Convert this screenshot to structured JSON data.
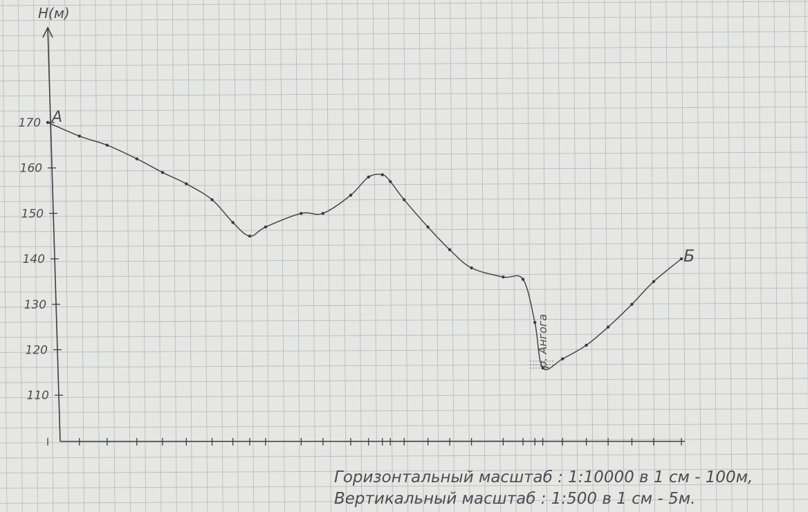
{
  "chart_data": {
    "type": "line",
    "y_axis_label": "H(м)",
    "y_ticks": [
      "110",
      "120",
      "130",
      "140",
      "150",
      "160",
      "170"
    ],
    "y_tick_values": [
      110,
      120,
      130,
      140,
      150,
      160,
      170
    ],
    "ylim": [
      100,
      180
    ],
    "x_range": [
      0,
      3200
    ],
    "start_label": "А",
    "end_label": "Б",
    "river_label": "р. Ангога",
    "series": [
      {
        "x": [
          0,
          160,
          300,
          450,
          580,
          700,
          830,
          935,
          1020,
          1100,
          1280,
          1390,
          1530,
          1620,
          1690,
          1730,
          1800,
          1920,
          2030,
          2140,
          2300,
          2400,
          2460,
          2500,
          2600,
          2720,
          2830,
          2950,
          3060,
          3200
        ],
        "y": [
          170,
          167,
          165,
          162,
          159,
          156.5,
          153,
          148,
          145,
          147,
          150,
          150,
          154,
          158,
          158.5,
          157,
          153,
          147,
          142,
          138,
          136,
          135.5,
          126,
          116,
          118,
          121,
          125,
          130,
          135,
          140
        ]
      }
    ]
  },
  "scale_lines": [
    "Горизонтальный масштаб : 1:10000 в 1 см - 100м,",
    "Вертикальный масштаб : 1:500 в 1 см - 5м."
  ],
  "colors": {
    "paper": "#e6e6e3",
    "grid": "#b9bcc6",
    "pencil": "#45454c"
  }
}
